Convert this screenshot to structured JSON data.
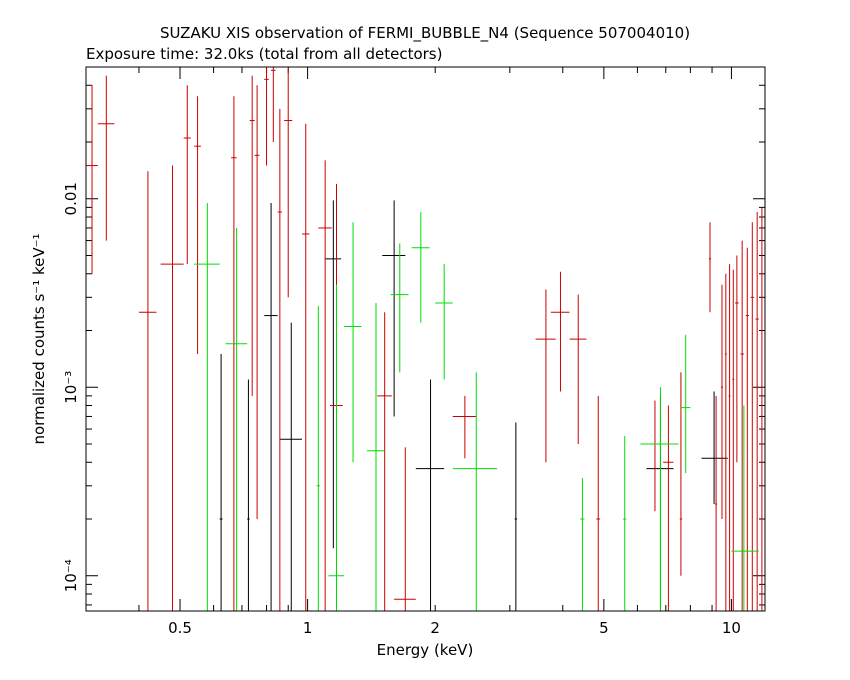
{
  "chart_data": {
    "type": "scatter",
    "title": "SUZAKU XIS observation of FERMI_BUBBLE_N4 (Sequence 507004010)",
    "subtitle": "Exposure time: 32.0ks (total from all detectors)",
    "xlabel": "Energy (keV)",
    "ylabel": "normalized counts s⁻¹ keV⁻¹",
    "x_scale": "log",
    "y_scale": "log",
    "xlim": [
      0.3,
      12.0
    ],
    "ylim": [
      6.5e-05,
      0.05
    ],
    "x_ticks": [
      {
        "value": 0.5,
        "label": "0.5"
      },
      {
        "value": 1,
        "label": "1"
      },
      {
        "value": 2,
        "label": "2"
      },
      {
        "value": 5,
        "label": "5"
      },
      {
        "value": 10,
        "label": "10"
      }
    ],
    "y_ticks": [
      {
        "value": 0.0001,
        "label": "10⁻⁴"
      },
      {
        "value": 0.001,
        "label": "10⁻³"
      },
      {
        "value": 0.01,
        "label": "0.01"
      }
    ],
    "grid": false,
    "legend": "none",
    "series": [
      {
        "color": "#000000",
        "points": [
          {
            "x": 0.625,
            "xlo": 0.62,
            "xhi": 0.63,
            "y": 0.0002,
            "ylo": 6.5e-05,
            "yhi": 0.0015
          },
          {
            "x": 0.725,
            "xlo": 0.72,
            "xhi": 0.73,
            "y": 0.0002,
            "ylo": 6.5e-05,
            "yhi": 0.0011
          },
          {
            "x": 0.82,
            "xlo": 0.79,
            "xhi": 0.85,
            "y": 0.0024,
            "ylo": 6.5e-05,
            "yhi": 0.0095
          },
          {
            "x": 0.915,
            "xlo": 0.86,
            "xhi": 0.97,
            "y": 0.00053,
            "ylo": 6.5e-05,
            "yhi": 0.0022
          },
          {
            "x": 1.15,
            "xlo": 1.1,
            "xhi": 1.2,
            "y": 0.0048,
            "ylo": 0.00014,
            "yhi": 0.0098
          },
          {
            "x": 1.6,
            "xlo": 1.5,
            "xhi": 1.7,
            "y": 0.005,
            "ylo": 0.0007,
            "yhi": 0.0098
          },
          {
            "x": 1.95,
            "xlo": 1.8,
            "xhi": 2.1,
            "y": 0.00037,
            "ylo": 6.5e-05,
            "yhi": 0.0011
          },
          {
            "x": 3.1,
            "xlo": 3.08,
            "xhi": 3.12,
            "y": 0.0002,
            "ylo": 6.5e-05,
            "yhi": 0.00065
          },
          {
            "x": 6.8,
            "xlo": 6.3,
            "xhi": 7.3,
            "y": 0.00037,
            "ylo": 6.5e-05,
            "yhi": 0.0009
          },
          {
            "x": 9.1,
            "xlo": 8.5,
            "xhi": 9.8,
            "y": 0.00042,
            "ylo": 0.00024,
            "yhi": 0.00095
          }
        ]
      },
      {
        "color": "#cc0000",
        "points": [
          {
            "x": 0.31,
            "xlo": 0.3,
            "xhi": 0.32,
            "y": 0.015,
            "ylo": 0.004,
            "yhi": 0.04
          },
          {
            "x": 0.335,
            "xlo": 0.32,
            "xhi": 0.35,
            "y": 0.025,
            "ylo": 0.006,
            "yhi": 0.045
          },
          {
            "x": 0.42,
            "xlo": 0.4,
            "xhi": 0.44,
            "y": 0.0025,
            "ylo": 6.5e-05,
            "yhi": 0.014
          },
          {
            "x": 0.48,
            "xlo": 0.45,
            "xhi": 0.51,
            "y": 0.0045,
            "ylo": 6.5e-05,
            "yhi": 0.015
          },
          {
            "x": 0.52,
            "xlo": 0.51,
            "xhi": 0.53,
            "y": 0.021,
            "ylo": 0.0045,
            "yhi": 0.04
          },
          {
            "x": 0.55,
            "xlo": 0.54,
            "xhi": 0.56,
            "y": 0.019,
            "ylo": 0.0015,
            "yhi": 0.035
          },
          {
            "x": 0.67,
            "xlo": 0.66,
            "xhi": 0.68,
            "y": 0.0165,
            "ylo": 6.5e-05,
            "yhi": 0.035
          },
          {
            "x": 0.74,
            "xlo": 0.73,
            "xhi": 0.75,
            "y": 0.026,
            "ylo": 0.0009,
            "yhi": 0.045
          },
          {
            "x": 0.76,
            "xlo": 0.75,
            "xhi": 0.77,
            "y": 0.017,
            "ylo": 0.0002,
            "yhi": 0.04
          },
          {
            "x": 0.8,
            "xlo": 0.79,
            "xhi": 0.81,
            "y": 0.043,
            "ylo": 0.015,
            "yhi": 0.05
          },
          {
            "x": 0.83,
            "xlo": 0.82,
            "xhi": 0.84,
            "y": 0.048,
            "ylo": 0.02,
            "yhi": 0.05
          },
          {
            "x": 0.86,
            "xlo": 0.85,
            "xhi": 0.87,
            "y": 0.0085,
            "ylo": 6.5e-05,
            "yhi": 0.03
          },
          {
            "x": 0.9,
            "xlo": 0.88,
            "xhi": 0.92,
            "y": 0.026,
            "ylo": 0.003,
            "yhi": 0.048
          },
          {
            "x": 0.99,
            "xlo": 0.97,
            "xhi": 1.01,
            "y": 0.0065,
            "ylo": 6.5e-05,
            "yhi": 0.025
          },
          {
            "x": 1.1,
            "xlo": 1.06,
            "xhi": 1.14,
            "y": 0.007,
            "ylo": 6.5e-05,
            "yhi": 0.016
          },
          {
            "x": 1.17,
            "xlo": 1.13,
            "xhi": 1.21,
            "y": 0.0008,
            "ylo": 6.5e-05,
            "yhi": 0.012
          },
          {
            "x": 1.52,
            "xlo": 1.46,
            "xhi": 1.58,
            "y": 0.0009,
            "ylo": 6.5e-05,
            "yhi": 0.0025
          },
          {
            "x": 1.7,
            "xlo": 1.6,
            "xhi": 1.8,
            "y": 7.5e-05,
            "ylo": 6.5e-05,
            "yhi": 0.00048
          },
          {
            "x": 2.35,
            "xlo": 2.2,
            "xhi": 2.5,
            "y": 0.0007,
            "ylo": 0.00042,
            "yhi": 0.0009
          },
          {
            "x": 3.65,
            "xlo": 3.45,
            "xhi": 3.85,
            "y": 0.0018,
            "ylo": 0.0004,
            "yhi": 0.0033
          },
          {
            "x": 3.95,
            "xlo": 3.75,
            "xhi": 4.15,
            "y": 0.0025,
            "ylo": 0.00095,
            "yhi": 0.0041
          },
          {
            "x": 4.35,
            "xlo": 4.15,
            "xhi": 4.55,
            "y": 0.0018,
            "ylo": 0.0005,
            "yhi": 0.0031
          },
          {
            "x": 4.85,
            "xlo": 4.8,
            "xhi": 4.9,
            "y": 0.0002,
            "ylo": 6.5e-05,
            "yhi": 0.0009
          },
          {
            "x": 6.6,
            "xlo": 6.1,
            "xhi": 7.1,
            "y": 0.0005,
            "ylo": 0.00022,
            "yhi": 0.00085
          },
          {
            "x": 7.1,
            "xlo": 6.9,
            "xhi": 7.3,
            "y": 0.0004,
            "ylo": 6.5e-05,
            "yhi": 0.0008
          },
          {
            "x": 7.6,
            "xlo": 7.55,
            "xhi": 7.65,
            "y": 0.0002,
            "ylo": 0.0001,
            "yhi": 0.0012
          },
          {
            "x": 8.9,
            "xlo": 8.85,
            "xhi": 8.95,
            "y": 0.0048,
            "ylo": 0.0025,
            "yhi": 0.0075
          },
          {
            "x": 9.2,
            "xlo": 9.15,
            "xhi": 9.25,
            "y": 0.00024,
            "ylo": 6.5e-05,
            "yhi": 0.0009
          },
          {
            "x": 9.5,
            "xlo": 9.45,
            "xhi": 9.55,
            "y": 0.001,
            "ylo": 0.0002,
            "yhi": 0.0035
          },
          {
            "x": 9.7,
            "xlo": 9.65,
            "xhi": 9.75,
            "y": 0.0015,
            "ylo": 6.5e-05,
            "yhi": 0.004
          },
          {
            "x": 9.9,
            "xlo": 9.85,
            "xhi": 9.95,
            "y": 0.0009,
            "ylo": 6.5e-05,
            "yhi": 0.0045
          },
          {
            "x": 10.1,
            "xlo": 10.05,
            "xhi": 10.15,
            "y": 0.0011,
            "ylo": 6.5e-05,
            "yhi": 0.0042
          },
          {
            "x": 10.3,
            "xlo": 10.2,
            "xhi": 10.4,
            "y": 0.0028,
            "ylo": 0.0004,
            "yhi": 0.005
          },
          {
            "x": 10.6,
            "xlo": 10.5,
            "xhi": 10.7,
            "y": 0.0015,
            "ylo": 6.5e-05,
            "yhi": 0.006
          },
          {
            "x": 10.9,
            "xlo": 10.8,
            "xhi": 11.0,
            "y": 0.0024,
            "ylo": 6.5e-05,
            "yhi": 0.0055
          },
          {
            "x": 11.2,
            "xlo": 11.1,
            "xhi": 11.3,
            "y": 0.003,
            "ylo": 6.5e-05,
            "yhi": 0.0075
          },
          {
            "x": 11.5,
            "xlo": 11.4,
            "xhi": 11.6,
            "y": 0.0023,
            "ylo": 6.5e-05,
            "yhi": 0.0085
          },
          {
            "x": 11.8,
            "xlo": 11.7,
            "xhi": 11.9,
            "y": 0.004,
            "ylo": 6.5e-05,
            "yhi": 0.009
          }
        ]
      },
      {
        "color": "#00dd00",
        "points": [
          {
            "x": 0.58,
            "xlo": 0.54,
            "xhi": 0.62,
            "y": 0.0045,
            "ylo": 6.5e-05,
            "yhi": 0.0095
          },
          {
            "x": 0.68,
            "xlo": 0.64,
            "xhi": 0.72,
            "y": 0.0017,
            "ylo": 6.5e-05,
            "yhi": 0.007
          },
          {
            "x": 1.06,
            "xlo": 1.05,
            "xhi": 1.07,
            "y": 0.0003,
            "ylo": 6.5e-05,
            "yhi": 0.0027
          },
          {
            "x": 1.17,
            "xlo": 1.12,
            "xhi": 1.22,
            "y": 0.0001,
            "ylo": 6.5e-05,
            "yhi": 0.0035
          },
          {
            "x": 1.28,
            "xlo": 1.22,
            "xhi": 1.34,
            "y": 0.0021,
            "ylo": 0.0004,
            "yhi": 0.0075
          },
          {
            "x": 1.45,
            "xlo": 1.38,
            "xhi": 1.52,
            "y": 0.00046,
            "ylo": 6.5e-05,
            "yhi": 0.0028
          },
          {
            "x": 1.65,
            "xlo": 1.57,
            "xhi": 1.73,
            "y": 0.0031,
            "ylo": 0.0012,
            "yhi": 0.0058
          },
          {
            "x": 1.85,
            "xlo": 1.76,
            "xhi": 1.94,
            "y": 0.0055,
            "ylo": 0.0022,
            "yhi": 0.0085
          },
          {
            "x": 2.1,
            "xlo": 2.0,
            "xhi": 2.2,
            "y": 0.0028,
            "ylo": 0.0011,
            "yhi": 0.0045
          },
          {
            "x": 2.5,
            "xlo": 2.2,
            "xhi": 2.8,
            "y": 0.00037,
            "ylo": 6.5e-05,
            "yhi": 0.0012
          },
          {
            "x": 4.45,
            "xlo": 4.4,
            "xhi": 4.5,
            "y": 0.0002,
            "ylo": 6.5e-05,
            "yhi": 0.00033
          },
          {
            "x": 5.6,
            "xlo": 5.55,
            "xhi": 5.65,
            "y": 0.0002,
            "ylo": 6.5e-05,
            "yhi": 0.00055
          },
          {
            "x": 6.8,
            "xlo": 6.1,
            "xhi": 7.5,
            "y": 0.0005,
            "ylo": 6.5e-05,
            "yhi": 0.001
          },
          {
            "x": 7.8,
            "xlo": 7.6,
            "xhi": 8.0,
            "y": 0.00078,
            "ylo": 0.00035,
            "yhi": 0.0019
          },
          {
            "x": 10.7,
            "xlo": 10.0,
            "xhi": 11.6,
            "y": 0.000135,
            "ylo": 6.5e-05,
            "yhi": 0.0008
          }
        ]
      }
    ]
  }
}
